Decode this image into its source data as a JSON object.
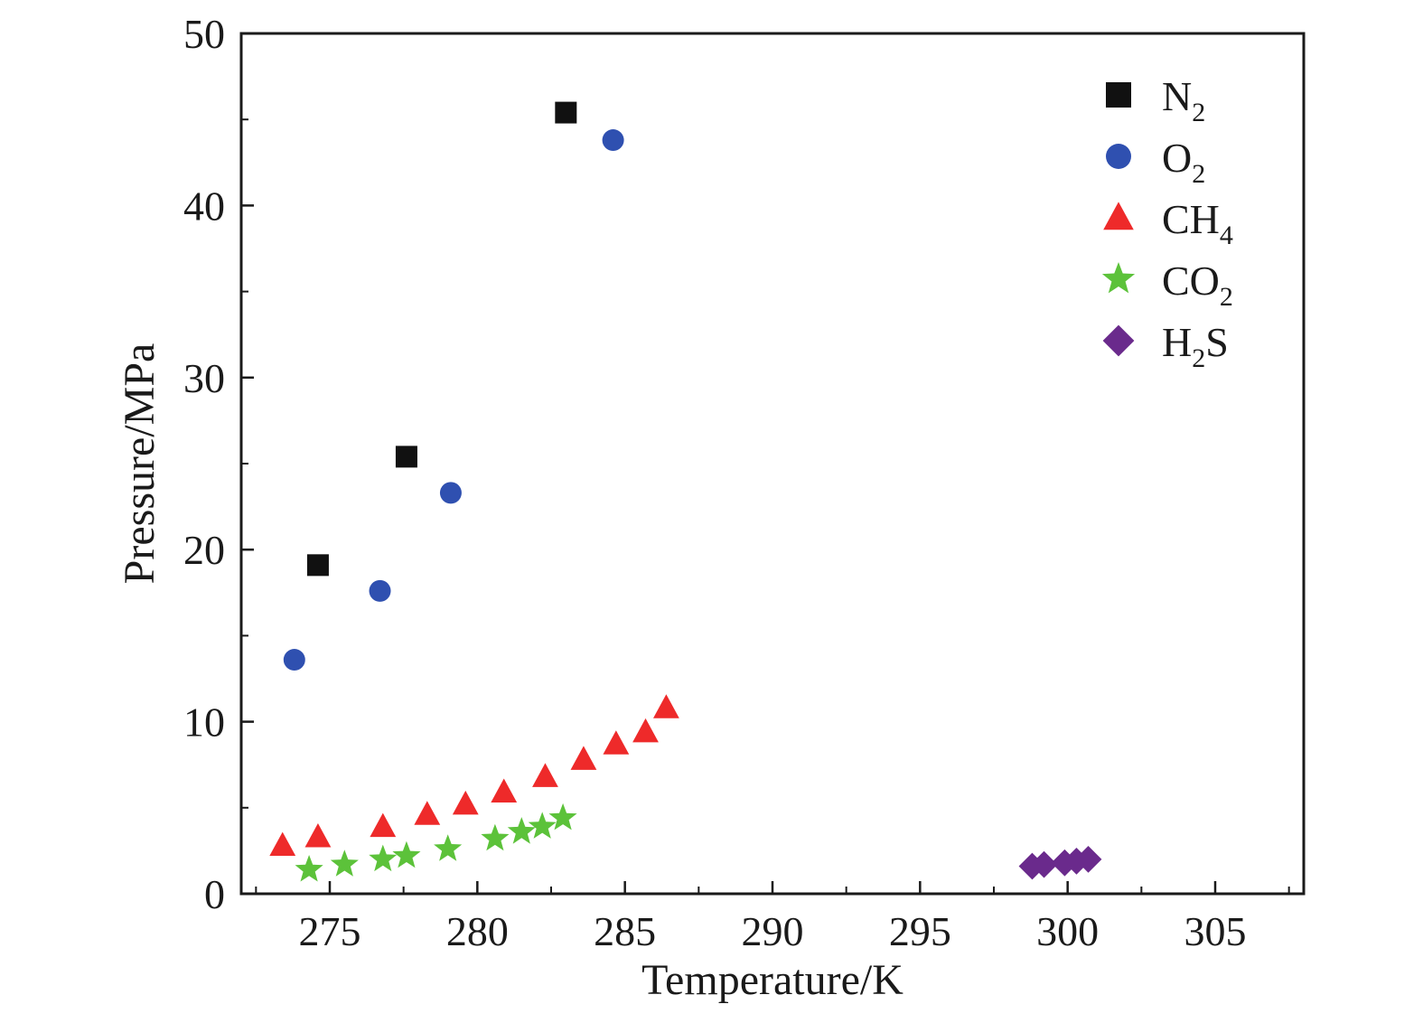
{
  "chart_data": {
    "type": "scatter",
    "title": "",
    "xlabel": "Temperature/K",
    "ylabel": "Pressure/MPa",
    "xlim": [
      272,
      308
    ],
    "ylim": [
      0,
      50
    ],
    "xticks": [
      275,
      280,
      285,
      290,
      295,
      300,
      305
    ],
    "yticks": [
      0,
      10,
      20,
      30,
      40,
      50
    ],
    "grid": false,
    "legend_position": "top-right",
    "series": [
      {
        "name": "N2",
        "label_main": "N",
        "label_sub": "2",
        "label_tail": "",
        "marker": "square",
        "color": "#111111",
        "x": [
          274.6,
          277.6,
          283.0
        ],
        "y": [
          19.1,
          25.4,
          45.4
        ]
      },
      {
        "name": "O2",
        "label_main": "O",
        "label_sub": "2",
        "label_tail": "",
        "marker": "circle",
        "color": "#2f50b0",
        "x": [
          273.8,
          276.7,
          279.1,
          284.6
        ],
        "y": [
          13.6,
          17.6,
          23.3,
          43.8
        ]
      },
      {
        "name": "CH4",
        "label_main": "CH",
        "label_sub": "4",
        "label_tail": "",
        "marker": "triangle",
        "color": "#ee2a2a",
        "x": [
          273.4,
          274.6,
          276.8,
          278.3,
          279.6,
          280.9,
          282.3,
          283.6,
          284.7,
          285.7,
          286.4
        ],
        "y": [
          2.8,
          3.3,
          3.9,
          4.6,
          5.2,
          5.9,
          6.8,
          7.8,
          8.7,
          9.4,
          10.8
        ]
      },
      {
        "name": "CO2",
        "label_main": "CO",
        "label_sub": "2",
        "label_tail": "",
        "marker": "star",
        "color": "#5cc23a",
        "x": [
          274.3,
          275.5,
          276.8,
          277.6,
          279.0,
          280.6,
          281.5,
          282.2,
          282.9
        ],
        "y": [
          1.4,
          1.7,
          2.0,
          2.2,
          2.6,
          3.2,
          3.6,
          3.9,
          4.4
        ]
      },
      {
        "name": "H2S",
        "label_main": "H",
        "label_sub": "2",
        "label_tail": "S",
        "marker": "diamond",
        "color": "#6a2a8c",
        "x": [
          298.8,
          299.2,
          299.9,
          300.3,
          300.7
        ],
        "y": [
          1.6,
          1.7,
          1.8,
          1.9,
          2.0
        ]
      }
    ]
  }
}
